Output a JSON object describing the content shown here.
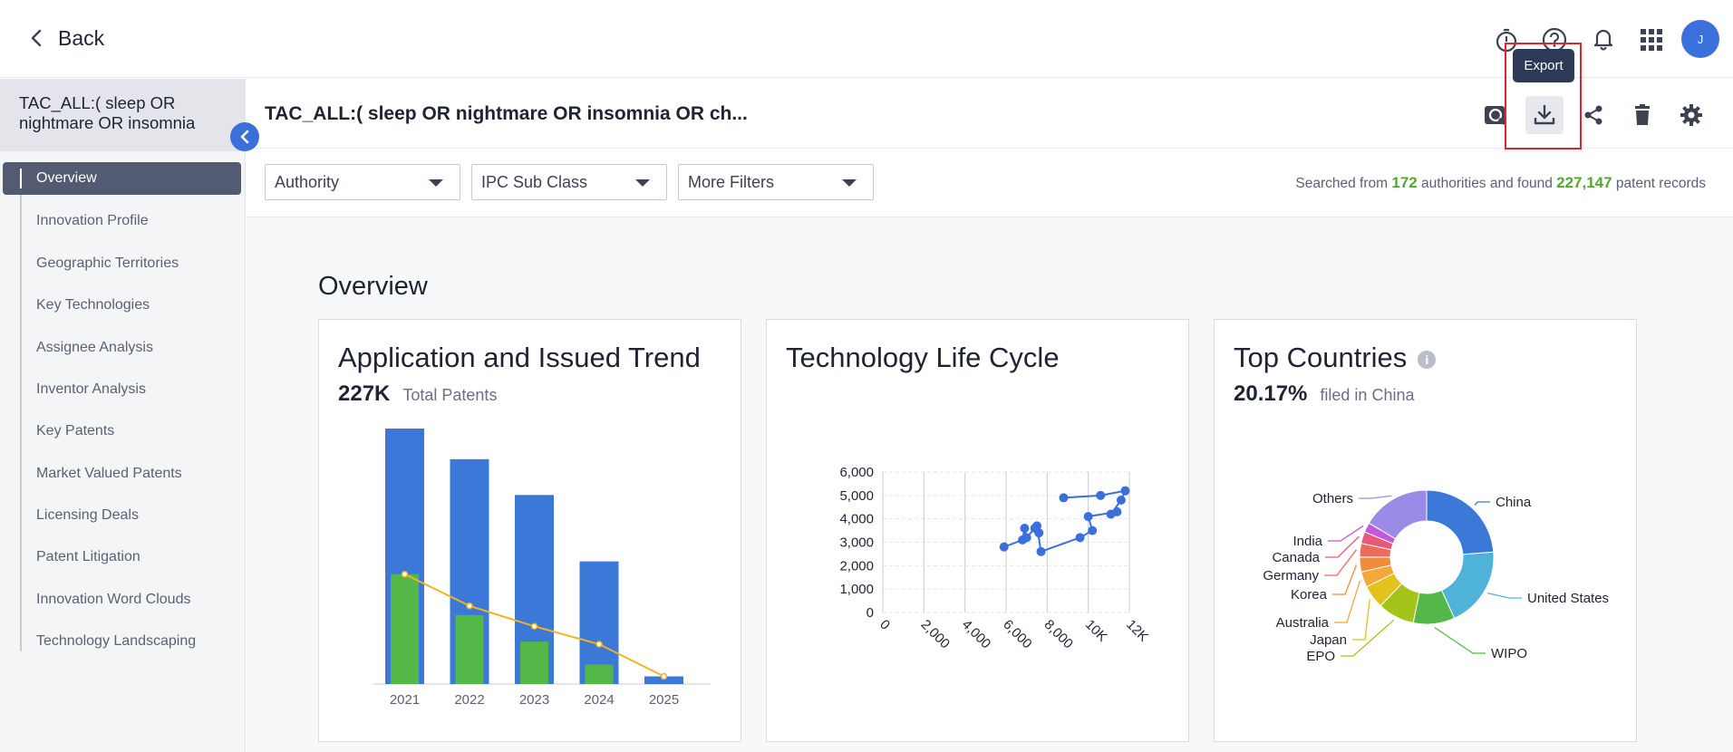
{
  "topbar": {
    "back_label": "Back",
    "avatar_initial": "J",
    "icons": [
      "stopwatch-icon",
      "help-icon",
      "bell-icon",
      "apps-grid-icon"
    ]
  },
  "sidebar": {
    "search_title": "TAC_ALL:( sleep OR nightmare OR insomnia",
    "items": [
      {
        "label": "Overview",
        "active": true
      },
      {
        "label": "Innovation Profile"
      },
      {
        "label": "Geographic Territories"
      },
      {
        "label": "Key Technologies"
      },
      {
        "label": "Assignee Analysis"
      },
      {
        "label": "Inventor Analysis"
      },
      {
        "label": "Key Patents"
      },
      {
        "label": "Market Valued Patents"
      },
      {
        "label": "Licensing Deals"
      },
      {
        "label": "Patent Litigation"
      },
      {
        "label": "Innovation Word Clouds"
      },
      {
        "label": "Technology Landscaping"
      }
    ]
  },
  "header": {
    "title": "TAC_ALL:( sleep OR nightmare OR insomnia OR ch...",
    "actions": [
      "search-analysis-icon",
      "export-icon",
      "share-icon",
      "delete-icon",
      "settings-icon"
    ],
    "export_tooltip": "Export"
  },
  "filters": {
    "authority": "Authority",
    "ipc": "IPC Sub Class",
    "more": "More Filters",
    "summary_prefix": "Searched from",
    "authorities_count": "172",
    "summary_mid": "authorities and found",
    "records_count": "227,147",
    "summary_suffix": "patent records"
  },
  "overview": {
    "title": "Overview",
    "trend_card": {
      "title": "Application and Issued Trend",
      "big": "227K",
      "small": "Total Patents"
    },
    "lifecycle_card": {
      "title": "Technology Life Cycle"
    },
    "countries_card": {
      "title": "Top Countries",
      "big": "20.17%",
      "small": "filed in China"
    }
  },
  "chart_data": [
    {
      "type": "bar",
      "title": "Application and Issued Trend",
      "categories": [
        "2021",
        "2022",
        "2023",
        "2024",
        "2025"
      ],
      "series": [
        {
          "values": [
            50000,
            44000,
            37000,
            24000,
            1500
          ],
          "color": "#3b78d8"
        },
        {
          "values": [
            21500,
            13500,
            8300,
            3800,
            0
          ],
          "color": "#54b848"
        },
        {
          "type": "line",
          "values": [
            21500,
            15300,
            11300,
            7800,
            1500
          ],
          "color": "#f2b31b"
        }
      ],
      "ylim": [
        0,
        50000
      ]
    },
    {
      "type": "scatter",
      "title": "Technology Life Cycle",
      "xlabel": "",
      "ylabel": "",
      "x_ticks": [
        "0",
        "2,000",
        "4,000",
        "6,000",
        "8,000",
        "10K",
        "12K"
      ],
      "y_ticks": [
        "0",
        "1,000",
        "2,000",
        "3,000",
        "4,000",
        "5,000",
        "6,000"
      ],
      "xlim": [
        0,
        12000
      ],
      "ylim": [
        0,
        6000
      ],
      "points": [
        {
          "x": 5900,
          "y": 2800
        },
        {
          "x": 6800,
          "y": 3100
        },
        {
          "x": 6900,
          "y": 3600
        },
        {
          "x": 7000,
          "y": 3200
        },
        {
          "x": 7400,
          "y": 3600
        },
        {
          "x": 7600,
          "y": 3400
        },
        {
          "x": 7500,
          "y": 3700
        },
        {
          "x": 7700,
          "y": 2600
        },
        {
          "x": 9600,
          "y": 3200
        },
        {
          "x": 10200,
          "y": 3500
        },
        {
          "x": 10000,
          "y": 4100
        },
        {
          "x": 11400,
          "y": 4300
        },
        {
          "x": 11100,
          "y": 4200
        },
        {
          "x": 11600,
          "y": 4800
        },
        {
          "x": 11800,
          "y": 5200
        },
        {
          "x": 10600,
          "y": 5000
        },
        {
          "x": 8800,
          "y": 4900
        }
      ],
      "color": "#3b6fd9"
    },
    {
      "type": "pie",
      "title": "Top Countries",
      "donut": true,
      "slices": [
        {
          "label": "China",
          "value": 20.17,
          "color": "#3b78d8"
        },
        {
          "label": "United States",
          "value": 16.5,
          "color": "#4fb3d9"
        },
        {
          "label": "WIPO",
          "value": 8.5,
          "color": "#54b848"
        },
        {
          "label": "EPO",
          "value": 7.5,
          "color": "#a4c31b"
        },
        {
          "label": "Japan",
          "value": 4.8,
          "color": "#e2c21b"
        },
        {
          "label": "Australia",
          "value": 3.2,
          "color": "#f2a83b"
        },
        {
          "label": "Korea",
          "value": 3.0,
          "color": "#f28a3b"
        },
        {
          "label": "Germany",
          "value": 2.8,
          "color": "#ee6a5a"
        },
        {
          "label": "Canada",
          "value": 2.4,
          "color": "#e8587a"
        },
        {
          "label": "India",
          "value": 2.0,
          "color": "#c458d6"
        },
        {
          "label": "Others",
          "value": 14.0,
          "color": "#9a8be6"
        }
      ]
    }
  ]
}
